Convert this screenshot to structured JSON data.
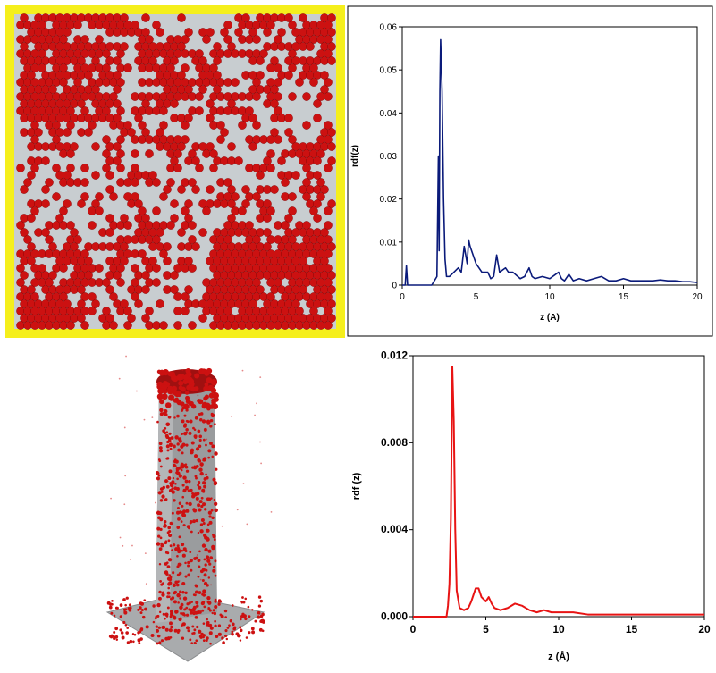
{
  "chart_data": [
    {
      "type": "line",
      "title": "",
      "xlabel": "z (A)",
      "ylabel": "rdf(z)",
      "xlim": [
        0,
        20
      ],
      "ylim": [
        0,
        0.06
      ],
      "xticks": [
        "0",
        "5",
        "10",
        "15",
        "20"
      ],
      "yticks": [
        "0",
        "0.01",
        "0.02",
        "0.03",
        "0.04",
        "0.05",
        "0.06"
      ],
      "grid": false,
      "color": "#0a1a7a",
      "x": [
        0,
        0.2,
        0.28,
        0.36,
        0.5,
        1,
        1.5,
        2,
        2.35,
        2.45,
        2.5,
        2.55,
        2.6,
        2.7,
        2.8,
        2.9,
        3.0,
        3.2,
        3.5,
        3.8,
        4.0,
        4.2,
        4.4,
        4.5,
        4.6,
        4.8,
        5.0,
        5.2,
        5.4,
        5.6,
        5.8,
        6.0,
        6.2,
        6.4,
        6.6,
        6.8,
        7.0,
        7.2,
        7.5,
        8.0,
        8.3,
        8.6,
        8.8,
        9.0,
        9.5,
        10,
        10.6,
        10.8,
        11,
        11.3,
        11.6,
        12,
        12.5,
        13,
        13.5,
        14,
        14.5,
        15,
        15.5,
        16,
        16.5,
        17,
        17.5,
        18,
        18.5,
        19,
        19.5,
        20
      ],
      "values": [
        0,
        0,
        0.0045,
        0,
        0,
        0,
        0,
        0,
        0.002,
        0.03,
        0.008,
        0.045,
        0.057,
        0.045,
        0.02,
        0.006,
        0.002,
        0.002,
        0.003,
        0.004,
        0.003,
        0.009,
        0.005,
        0.0105,
        0.009,
        0.007,
        0.005,
        0.004,
        0.003,
        0.003,
        0.003,
        0.0015,
        0.002,
        0.007,
        0.003,
        0.0035,
        0.004,
        0.003,
        0.003,
        0.0015,
        0.002,
        0.004,
        0.002,
        0.0015,
        0.002,
        0.0015,
        0.003,
        0.0015,
        0.001,
        0.0025,
        0.001,
        0.0015,
        0.001,
        0.0015,
        0.002,
        0.001,
        0.001,
        0.0015,
        0.001,
        0.001,
        0.001,
        0.001,
        0.0012,
        0.001,
        0.001,
        0.0008,
        0.0008,
        0.0006
      ]
    },
    {
      "type": "line",
      "title": "",
      "xlabel": "z (Å)",
      "ylabel": "rdf (z)",
      "xlim": [
        0,
        20
      ],
      "ylim": [
        0,
        0.012
      ],
      "xticks": [
        "0",
        "5",
        "10",
        "15",
        "20"
      ],
      "yticks": [
        "0.000",
        "0.004",
        "0.008",
        "0.012"
      ],
      "grid": false,
      "color": "#e81414",
      "x": [
        0,
        1,
        2,
        2.3,
        2.4,
        2.5,
        2.6,
        2.7,
        2.8,
        2.9,
        3.0,
        3.2,
        3.5,
        3.8,
        4.0,
        4.3,
        4.5,
        4.7,
        5.0,
        5.2,
        5.4,
        5.6,
        6.0,
        6.5,
        7.0,
        7.5,
        8.0,
        8.5,
        9.0,
        9.5,
        10,
        11,
        12,
        13,
        14,
        15,
        16,
        17,
        18,
        19,
        20
      ],
      "values": [
        0,
        0,
        0,
        0,
        0.0005,
        0.0015,
        0.0045,
        0.0115,
        0.009,
        0.004,
        0.0012,
        0.0004,
        0.0003,
        0.0004,
        0.0007,
        0.0013,
        0.0013,
        0.0009,
        0.0007,
        0.0009,
        0.0006,
        0.0004,
        0.0003,
        0.0004,
        0.0006,
        0.0005,
        0.0003,
        0.0002,
        0.0003,
        0.0002,
        0.0002,
        0.0002,
        0.0001,
        0.0001,
        0.0001,
        0.0001,
        0.0001,
        0.0001,
        0.0001,
        0.0001,
        0.0001
      ]
    }
  ],
  "images": {
    "top_left": {
      "description_icon": "surface-top-view",
      "frame_color": "#f5ef1c",
      "particle_color": "#cc1111",
      "substrate_color": "#c8cdd0"
    },
    "bottom_left": {
      "description_icon": "pillar-3d-view",
      "particle_color": "#cc1111",
      "pillar_color": "#9a9c9e"
    }
  }
}
